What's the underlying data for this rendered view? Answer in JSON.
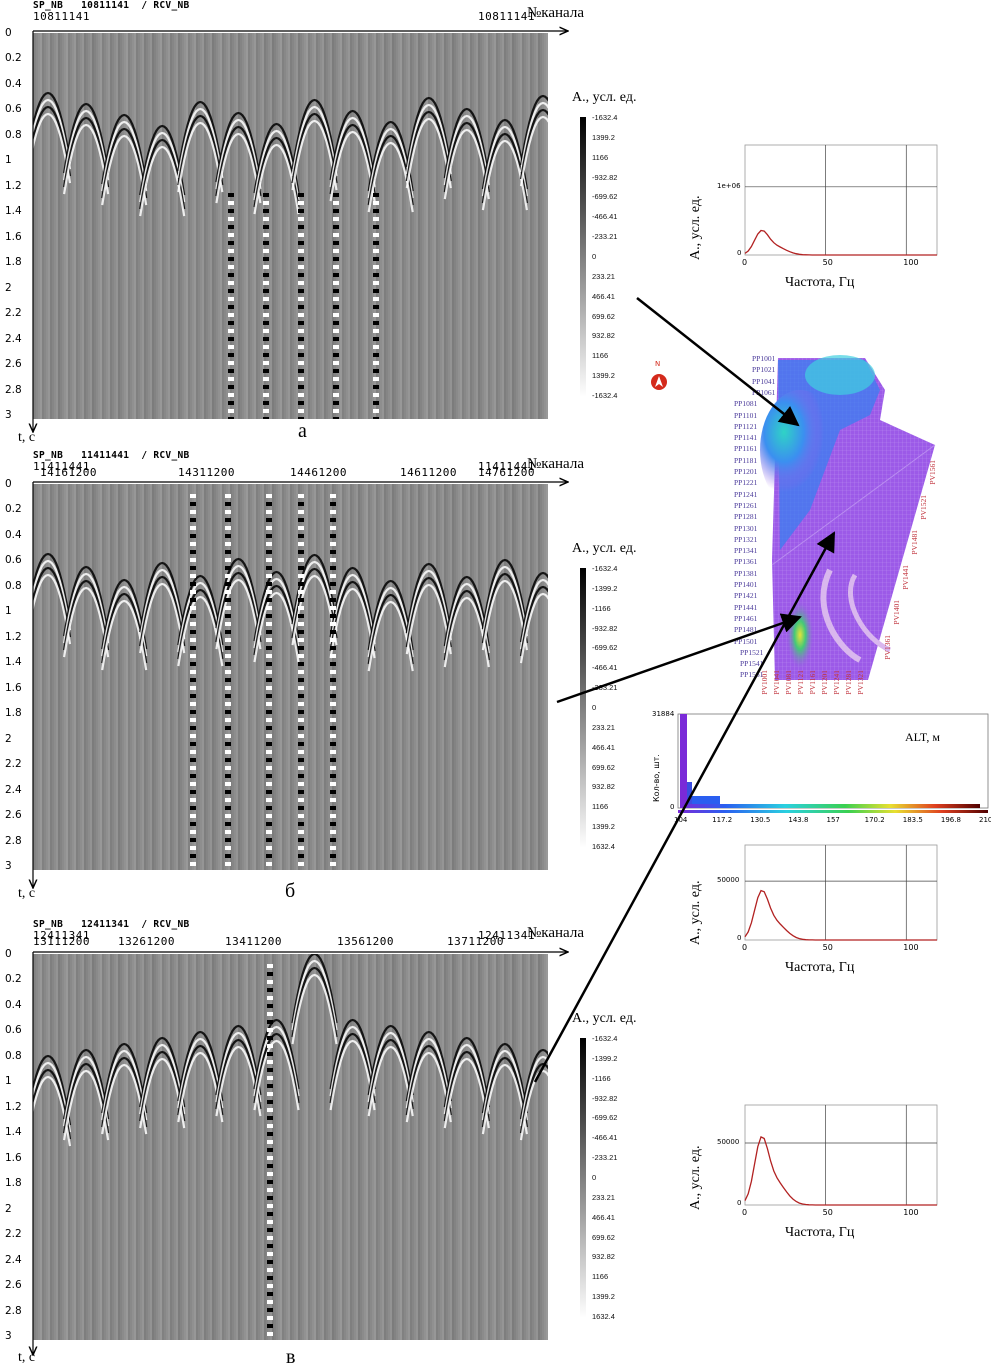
{
  "panels": [
    {
      "id": "a",
      "header": "SP_NB   10811141  / RCV_NB",
      "channels": [
        "10811141",
        "10811141"
      ],
      "axis_label": "№канала",
      "time_label": "t, c",
      "panel_letter": "а",
      "colorbar_title": "А., усл. ед."
    },
    {
      "id": "b",
      "header": "SP_NB   11411441  / RCV_NB",
      "channels": [
        "11411441",
        "14161200",
        "14311200",
        "14461200",
        "14611200",
        "14761200",
        "11411441"
      ],
      "axis_label": "№канала",
      "time_label": "t, c",
      "panel_letter": "б",
      "colorbar_title": "А., усл. ед."
    },
    {
      "id": "c",
      "header": "SP_NB   12411341  / RCV_NB",
      "channels": [
        "12411341",
        "13111200",
        "13261200",
        "13411200",
        "13561200",
        "13711200",
        "12411341"
      ],
      "axis_label": "№канала",
      "time_label": "t, c",
      "panel_letter": "в",
      "colorbar_title": "А., усл. ед."
    }
  ],
  "time_ticks": [
    "0",
    "0.2",
    "0.4",
    "0.6",
    "0.8",
    "1",
    "1.2",
    "1.4",
    "1.6",
    "1.8",
    "2",
    "2.2",
    "2.4",
    "2.6",
    "2.8",
    "3"
  ],
  "colorbar_ticks": [
    "-1632.4",
    "-1399.2",
    "-1166",
    "-932.82",
    "-699.62",
    "-466.41",
    "-233.21",
    "0",
    "233.21",
    "466.41",
    "699.62",
    "932.82",
    "1166",
    "1399.2",
    "1632.4"
  ],
  "colorbar_ticks_a": [
    "-1632.4",
    "1399.2",
    "1166",
    "-932.82",
    "-699.62",
    "-466.41",
    "-233.21",
    "0",
    "233.21",
    "466.41",
    "699.62",
    "932.82",
    "1166",
    "1399.2",
    "-1632.4"
  ],
  "spectra": [
    {
      "ylabel": "А., усл. ед.",
      "xlabel": "Частота, Гц",
      "ytick": "1e+06",
      "yzero": "0",
      "xticks": [
        "0",
        "50",
        "100"
      ]
    },
    {
      "ylabel": "А., усл. ед.",
      "xlabel": "Частота, Гц",
      "ytick": "50000",
      "yzero": "0",
      "xticks": [
        "0",
        "50",
        "100"
      ]
    },
    {
      "ylabel": "А., усл. ед.",
      "xlabel": "Частота, Гц",
      "ytick": "50000",
      "yzero": "0",
      "xticks": [
        "0",
        "50",
        "100"
      ]
    }
  ],
  "map": {
    "compass": "N",
    "left_labels": [
      "PP1001",
      "PP1021",
      "PP1041",
      "PP1061",
      "PP1081",
      "PP1101",
      "PP1121",
      "PP1141",
      "PP1161",
      "PP1181",
      "PP1201",
      "PP1221",
      "PP1241",
      "PP1261",
      "PP1281",
      "PP1301",
      "PP1321",
      "PP1341",
      "PP1361",
      "PP1381",
      "PP1401",
      "PP1421",
      "PP1441",
      "PP1461",
      "PP1481",
      "PP1501",
      "PP1521",
      "PP1541",
      "PP1561"
    ],
    "bottom_labels": [
      "PV1001",
      "PV1041",
      "PV1081",
      "PV1121",
      "PV1161",
      "PV1201",
      "PV1241",
      "PV1281",
      "PV1321"
    ],
    "right_labels": [
      "PV1561",
      "PV1521",
      "PV1481",
      "PV1441",
      "PV1401",
      "PV1361"
    ]
  },
  "histogram": {
    "ylabel": "Кол-во, шт.",
    "ymax": "31884",
    "yzero": "0",
    "title": "ALT, м",
    "xticks": [
      "104",
      "117.2",
      "130.5",
      "143.8",
      "157",
      "170.2",
      "183.5",
      "196.8",
      "210"
    ]
  },
  "colors": {
    "map_fill": "#9b59e8",
    "spectrum_line": "#b22222",
    "accent_compass": "#d42a1c"
  }
}
